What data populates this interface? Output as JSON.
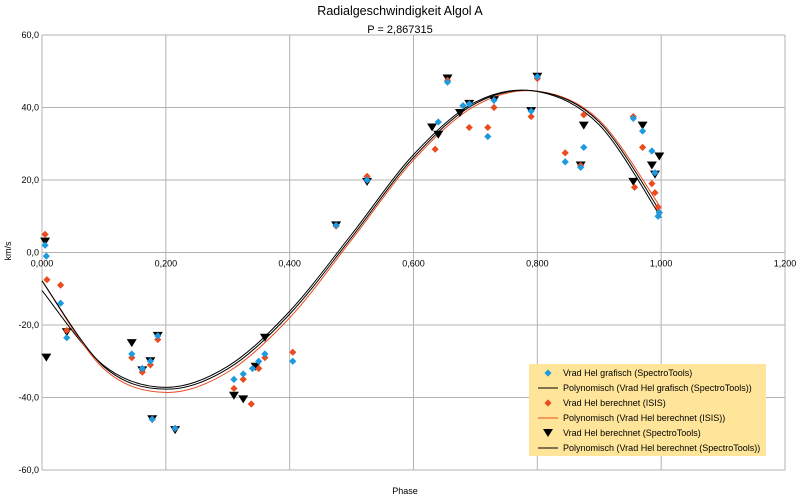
{
  "chart_data": {
    "type": "scatter",
    "title": "Radialgeschwindigkeit Algol A",
    "subtitle": "P = 2,867315",
    "xlabel": "Phase",
    "ylabel": "km/s",
    "xlim": [
      0,
      1.2
    ],
    "ylim": [
      -60,
      60
    ],
    "x_ticks": [
      "0,000",
      "0,200",
      "0,400",
      "0,600",
      "0,800",
      "1,000",
      "1,200"
    ],
    "y_ticks": [
      "-60,0",
      "-40,0",
      "-20,0",
      "0,0",
      "20,0",
      "40,0",
      "60,0"
    ],
    "grid": true,
    "legend_position": "bottom-right",
    "legend_background": "#ffe599",
    "series": [
      {
        "name": "Vrad Hel grafisch (SpectroTools)",
        "kind": "points",
        "marker": "diamond",
        "color": "#1e9ae0",
        "points": [
          [
            0.005,
            2
          ],
          [
            0.007,
            -1
          ],
          [
            0.03,
            -14
          ],
          [
            0.04,
            -23.5
          ],
          [
            0.145,
            -28
          ],
          [
            0.162,
            -32
          ],
          [
            0.175,
            -30
          ],
          [
            0.178,
            -46
          ],
          [
            0.187,
            -23
          ],
          [
            0.215,
            -48.5
          ],
          [
            0.31,
            -35
          ],
          [
            0.325,
            -33.5
          ],
          [
            0.34,
            -32
          ],
          [
            0.35,
            -30
          ],
          [
            0.36,
            -28
          ],
          [
            0.405,
            -30
          ],
          [
            0.475,
            7.5
          ],
          [
            0.525,
            20
          ],
          [
            0.64,
            36
          ],
          [
            0.655,
            47
          ],
          [
            0.68,
            40.5
          ],
          [
            0.69,
            41
          ],
          [
            0.72,
            32
          ],
          [
            0.73,
            42
          ],
          [
            0.79,
            39
          ],
          [
            0.8,
            48.5
          ],
          [
            0.845,
            25
          ],
          [
            0.87,
            23.5
          ],
          [
            0.875,
            29
          ],
          [
            0.955,
            37
          ],
          [
            0.97,
            33.5
          ],
          [
            0.985,
            28
          ],
          [
            0.99,
            22
          ],
          [
            0.995,
            10
          ],
          [
            0.997,
            11
          ]
        ]
      },
      {
        "name": "Polynomisch (Vrad Hel grafisch (SpectroTools))",
        "kind": "trend",
        "color": "#000000",
        "points": [
          [
            0,
            -10.5
          ],
          [
            0.1,
            -31.2
          ],
          [
            0.2,
            -37.2
          ],
          [
            0.3,
            -31.4
          ],
          [
            0.4,
            -16.2
          ],
          [
            0.5,
            5
          ],
          [
            0.6,
            27
          ],
          [
            0.7,
            41.5
          ],
          [
            0.8,
            44.4
          ],
          [
            0.9,
            35.2
          ],
          [
            1,
            9.6
          ]
        ]
      },
      {
        "name": "Vrad Hel berechnet (ISIS)",
        "kind": "points",
        "marker": "diamond",
        "color": "#ea4b1f",
        "points": [
          [
            0.005,
            5
          ],
          [
            0.008,
            -7.5
          ],
          [
            0.03,
            -9
          ],
          [
            0.04,
            -21.5
          ],
          [
            0.145,
            -29
          ],
          [
            0.162,
            -33
          ],
          [
            0.175,
            -31
          ],
          [
            0.178,
            -46
          ],
          [
            0.187,
            -24
          ],
          [
            0.215,
            -48.5
          ],
          [
            0.31,
            -37.5
          ],
          [
            0.325,
            -35
          ],
          [
            0.338,
            -41.8
          ],
          [
            0.35,
            -32
          ],
          [
            0.36,
            -29
          ],
          [
            0.405,
            -27.5
          ],
          [
            0.475,
            7.3
          ],
          [
            0.525,
            21
          ],
          [
            0.635,
            28.5
          ],
          [
            0.655,
            47.5
          ],
          [
            0.68,
            40.5
          ],
          [
            0.69,
            34.5
          ],
          [
            0.72,
            34.5
          ],
          [
            0.73,
            40
          ],
          [
            0.79,
            37.5
          ],
          [
            0.8,
            48
          ],
          [
            0.845,
            27.5
          ],
          [
            0.87,
            24
          ],
          [
            0.875,
            38
          ],
          [
            0.955,
            37.5
          ],
          [
            0.957,
            18
          ],
          [
            0.97,
            29
          ],
          [
            0.985,
            19
          ],
          [
            0.99,
            16.5
          ],
          [
            0.995,
            12.5
          ],
          [
            0.997,
            11
          ]
        ]
      },
      {
        "name": "Polynomisch (Vrad Hel berechnet (ISIS))",
        "kind": "trend",
        "color": "#ea4b1f",
        "points": [
          [
            0,
            -7.8
          ],
          [
            0.1,
            -32.1
          ],
          [
            0.2,
            -38.6
          ],
          [
            0.3,
            -33
          ],
          [
            0.4,
            -18
          ],
          [
            0.5,
            3.5
          ],
          [
            0.6,
            25.5
          ],
          [
            0.7,
            40.5
          ],
          [
            0.8,
            44.5
          ],
          [
            0.9,
            36.5
          ],
          [
            1,
            12.2
          ]
        ]
      },
      {
        "name": "Vrad Hel berechnet (SpectroTools)",
        "kind": "points",
        "marker": "triangle-down",
        "color": "#000000",
        "points": [
          [
            0.005,
            3
          ],
          [
            0.007,
            -29
          ],
          [
            0.04,
            -22
          ],
          [
            0.145,
            -25
          ],
          [
            0.162,
            -32.5
          ],
          [
            0.175,
            -30
          ],
          [
            0.178,
            -46
          ],
          [
            0.187,
            -23
          ],
          [
            0.215,
            -49
          ],
          [
            0.31,
            -39.5
          ],
          [
            0.325,
            -40.5
          ],
          [
            0.345,
            -31.5
          ],
          [
            0.36,
            -23.5
          ],
          [
            0.475,
            7.5
          ],
          [
            0.525,
            19.5
          ],
          [
            0.63,
            34.5
          ],
          [
            0.64,
            32.5
          ],
          [
            0.655,
            48
          ],
          [
            0.675,
            38.5
          ],
          [
            0.69,
            41
          ],
          [
            0.73,
            42
          ],
          [
            0.79,
            39
          ],
          [
            0.8,
            48.5
          ],
          [
            0.87,
            24
          ],
          [
            0.875,
            35
          ],
          [
            0.955,
            19.5
          ],
          [
            0.97,
            35
          ],
          [
            0.985,
            24
          ],
          [
            0.99,
            21.5
          ],
          [
            0.997,
            26.5
          ]
        ]
      },
      {
        "name": "Polynomisch (Vrad Hel berechnet (SpectroTools))",
        "kind": "trend",
        "color": "#000000",
        "points": [
          [
            0,
            -7.8
          ],
          [
            0.1,
            -31.5
          ],
          [
            0.2,
            -37.7
          ],
          [
            0.3,
            -32.1
          ],
          [
            0.4,
            -17
          ],
          [
            0.5,
            4.2
          ],
          [
            0.6,
            26.2
          ],
          [
            0.7,
            41.1
          ],
          [
            0.8,
            44.5
          ],
          [
            0.9,
            36
          ],
          [
            1,
            10.9
          ]
        ]
      }
    ]
  }
}
